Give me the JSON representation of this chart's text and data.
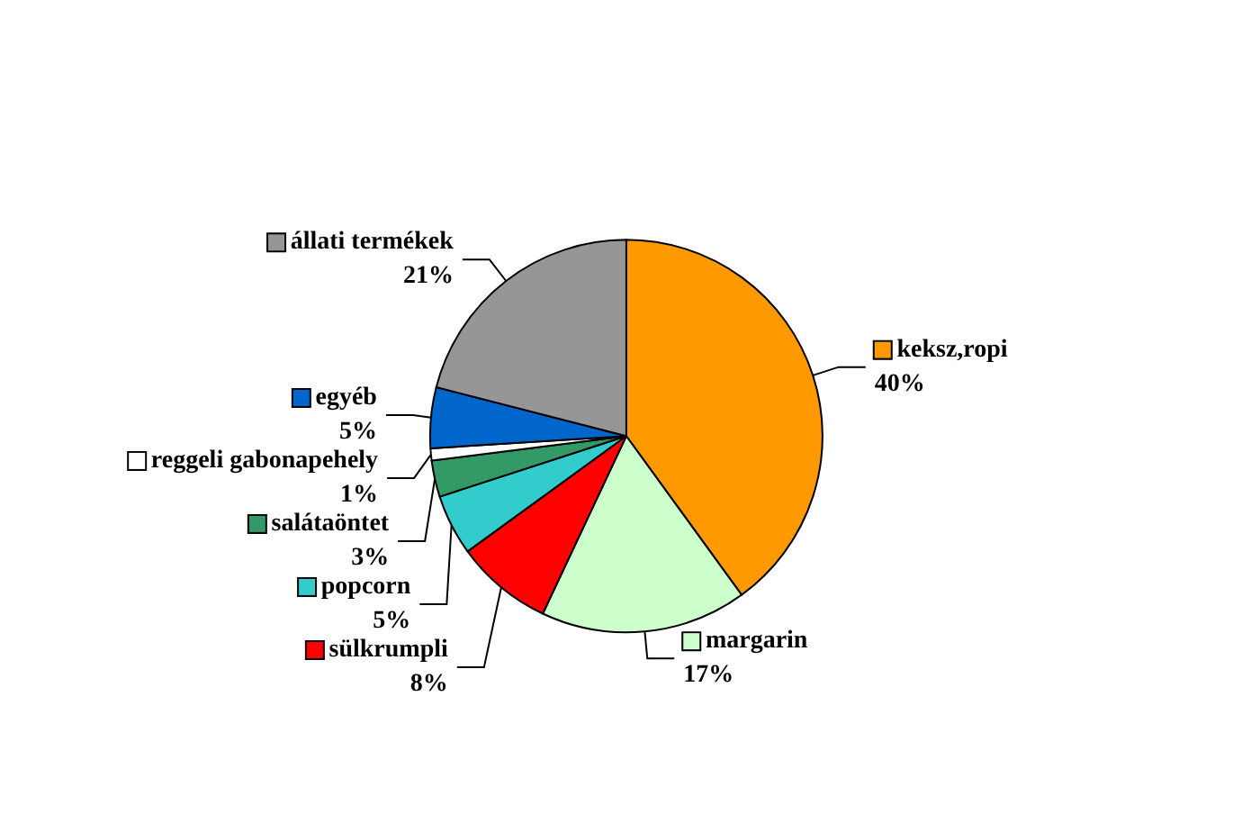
{
  "chart_data": {
    "type": "pie",
    "categories": [
      "keksz,ropi",
      "margarin",
      "sülkrumpli",
      "popcorn",
      "salátaöntet",
      "reggeli gabonapehely",
      "egyéb",
      "állati termékek"
    ],
    "values": [
      40,
      17,
      8,
      5,
      3,
      1,
      5,
      21
    ],
    "colors": [
      "#ff9900",
      "#ccffcc",
      "#ff0000",
      "#33cccc",
      "#339966",
      "#ffffff",
      "#0066cc",
      "#969696"
    ],
    "value_labels": [
      "40%",
      "17%",
      "8%",
      "5%",
      "3%",
      "1%",
      "5%",
      "21%"
    ],
    "legend": "left"
  }
}
